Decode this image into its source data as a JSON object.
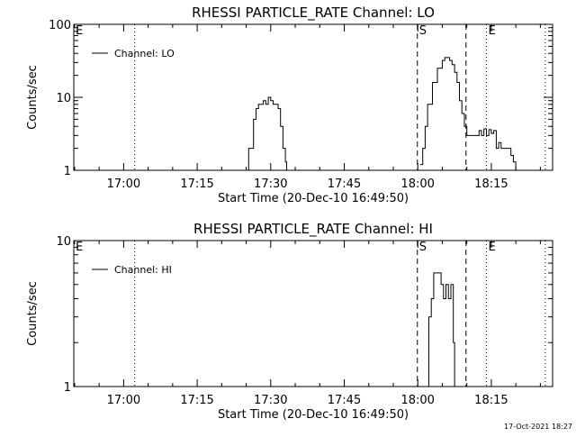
{
  "footer": {
    "timestamp": "17-Oct-2021 18:27"
  },
  "chart_data": [
    {
      "type": "line",
      "title": "RHESSI PARTICLE_RATE Channel: LO",
      "xlabel": "Start Time (20-Dec-10 16:49:50)",
      "ylabel": "Counts/sec",
      "xlim": [
        "16:49:50",
        "18:27:30"
      ],
      "ylim": [
        1,
        100
      ],
      "yscale": "log",
      "xticks": [
        "17:00",
        "17:15",
        "17:30",
        "17:45",
        "18:00",
        "18:15"
      ],
      "yticks": [
        {
          "value": 1,
          "label": "1"
        },
        {
          "value": 10,
          "label": "10"
        },
        {
          "value": 100,
          "label": "100"
        }
      ],
      "legend": {
        "label": "Channel: LO",
        "placement": "top-left"
      },
      "markers": [
        {
          "label": "E",
          "time": "16:49:50",
          "style": "none"
        },
        {
          "label": "",
          "time": "17:02:15",
          "style": "dotted"
        },
        {
          "label": "S",
          "time": "17:59:55",
          "style": "dashed"
        },
        {
          "label": "",
          "time": "18:09:50",
          "style": "dashed"
        },
        {
          "label": "E",
          "time": "18:14:00",
          "style": "dotted"
        },
        {
          "label": "",
          "time": "18:26:00",
          "style": "dotted"
        }
      ],
      "series": [
        {
          "name": "Channel: LO",
          "x": [
            "17:24:30",
            "17:25:30",
            "17:26:30",
            "17:27:00",
            "17:27:30",
            "17:28:00",
            "17:28:30",
            "17:29:00",
            "17:29:30",
            "17:30:00",
            "17:30:30",
            "17:31:00",
            "17:31:30",
            "17:32:00",
            "17:32:30",
            "17:33:00",
            "17:33:15",
            "18:00:30",
            "18:01:00",
            "18:01:30",
            "18:02:00",
            "18:03:00",
            "18:04:00",
            "18:05:00",
            "18:05:30",
            "18:06:00",
            "18:06:30",
            "18:07:00",
            "18:07:30",
            "18:08:00",
            "18:08:30",
            "18:09:00",
            "18:09:30",
            "18:10:00",
            "18:11:00",
            "18:12:00",
            "18:12:30",
            "18:13:00",
            "18:13:30",
            "18:14:00",
            "18:14:30",
            "18:15:00",
            "18:15:30",
            "18:16:00",
            "18:16:30",
            "18:17:00",
            "18:18:00",
            "18:19:00",
            "18:19:30",
            "18:20:00",
            "18:20:30"
          ],
          "y": [
            1,
            2,
            5,
            7,
            8,
            8,
            9,
            8,
            10,
            9,
            8,
            8,
            7,
            4,
            2,
            1.3,
            1,
            1.2,
            2,
            4,
            8,
            16,
            25,
            32,
            35,
            35,
            32,
            28,
            22,
            16,
            9,
            6,
            4,
            3,
            3,
            3,
            3.5,
            3,
            3.7,
            3,
            3.6,
            3.2,
            3.5,
            2,
            2.4,
            2,
            2,
            1.6,
            1.3,
            1,
            1
          ]
        }
      ]
    },
    {
      "type": "line",
      "title": "RHESSI PARTICLE_RATE Channel: HI",
      "xlabel": "Start Time (20-Dec-10 16:49:50)",
      "ylabel": "Counts/sec",
      "xlim": [
        "16:49:50",
        "18:27:30"
      ],
      "ylim": [
        1,
        10
      ],
      "yscale": "log",
      "xticks": [
        "17:00",
        "17:15",
        "17:30",
        "17:45",
        "18:00",
        "18:15"
      ],
      "yticks": [
        {
          "value": 1,
          "label": "1"
        },
        {
          "value": 10,
          "label": "10"
        }
      ],
      "legend": {
        "label": "Channel: HI",
        "placement": "top-left"
      },
      "markers": [
        {
          "label": "E",
          "time": "16:49:50",
          "style": "none"
        },
        {
          "label": "",
          "time": "17:02:15",
          "style": "dotted"
        },
        {
          "label": "S",
          "time": "17:59:55",
          "style": "dashed"
        },
        {
          "label": "",
          "time": "18:09:50",
          "style": "dashed"
        },
        {
          "label": "E",
          "time": "18:14:00",
          "style": "dotted"
        },
        {
          "label": "",
          "time": "18:26:00",
          "style": "dotted"
        }
      ],
      "series": [
        {
          "name": "Channel: HI",
          "x": [
            "18:01:45",
            "18:02:15",
            "18:02:45",
            "18:03:15",
            "18:03:45",
            "18:04:15",
            "18:04:45",
            "18:05:15",
            "18:05:45",
            "18:06:15",
            "18:06:45",
            "18:07:15",
            "18:07:30"
          ],
          "y": [
            1,
            3,
            4,
            6,
            6,
            6,
            5,
            4,
            5,
            4,
            5,
            2,
            1
          ]
        }
      ]
    }
  ]
}
